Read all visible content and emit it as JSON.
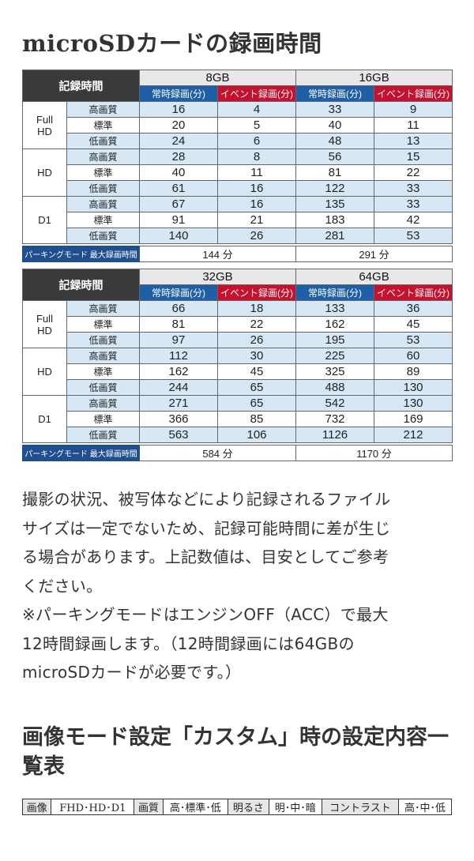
{
  "title": "microSDカードの録画時間",
  "table_header": {
    "label": "記録時間",
    "normal": "常時録画(分)",
    "event": "イベント録画(分)"
  },
  "groups": [
    {
      "res": "Full HD",
      "res_lines": [
        "Full",
        "HD"
      ]
    },
    {
      "res": "HD",
      "res_lines": [
        "HD"
      ]
    },
    {
      "res": "D1",
      "res_lines": [
        "D1"
      ]
    }
  ],
  "qualities": [
    "高画質",
    "標準",
    "低画質"
  ],
  "parking_label": "パーキングモード 最大録画時間",
  "tables": [
    {
      "capacities": [
        "8GB",
        "16GB"
      ],
      "rows": [
        [
          16,
          4,
          33,
          9
        ],
        [
          20,
          5,
          40,
          11
        ],
        [
          24,
          6,
          48,
          13
        ],
        [
          28,
          8,
          56,
          15
        ],
        [
          40,
          11,
          81,
          22
        ],
        [
          61,
          16,
          122,
          33
        ],
        [
          67,
          16,
          135,
          33
        ],
        [
          91,
          21,
          183,
          42
        ],
        [
          140,
          26,
          281,
          53
        ]
      ],
      "parking": [
        "144 分",
        "291 分"
      ]
    },
    {
      "capacities": [
        "32GB",
        "64GB"
      ],
      "rows": [
        [
          66,
          18,
          133,
          36
        ],
        [
          81,
          22,
          162,
          45
        ],
        [
          97,
          26,
          195,
          53
        ],
        [
          112,
          30,
          225,
          60
        ],
        [
          162,
          45,
          325,
          89
        ],
        [
          244,
          65,
          488,
          130
        ],
        [
          271,
          65,
          542,
          130
        ],
        [
          366,
          85,
          732,
          169
        ],
        [
          563,
          106,
          1126,
          212
        ]
      ],
      "parking": [
        "584 分",
        "1170 分"
      ]
    }
  ],
  "notes": [
    "撮影の状況、被写体などにより記録されるファイル",
    "サイズは一定でないため、記録可能時間に差が生じ",
    "る場合があります。上記数値は、目安としてご参考",
    "ください。",
    "※パーキングモードはエンジンOFF（ACC）で最大",
    "12時間録画します。（12時間録画には64GBの",
    "microSDカードが必要です。）"
  ],
  "title2": "画像モード設定「カスタム」時の設定内容一覧表",
  "settings": [
    {
      "key": "画像",
      "value": "FHD･HD･D1"
    },
    {
      "key": "画質",
      "value": "高･標準･低"
    },
    {
      "key": "明るさ",
      "value": "明･中･暗"
    },
    {
      "key": "コントラスト",
      "value": "高･中･低"
    }
  ]
}
